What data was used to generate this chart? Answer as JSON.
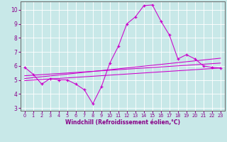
{
  "title": "",
  "xlabel": "Windchill (Refroidissement éolien,°C)",
  "ylabel": "",
  "background_color": "#c8e8e8",
  "grid_color": "#ffffff",
  "line_color": "#cc00cc",
  "xlim": [
    -0.5,
    23.5
  ],
  "ylim": [
    2.8,
    10.6
  ],
  "xticks": [
    0,
    1,
    2,
    3,
    4,
    5,
    6,
    7,
    8,
    9,
    10,
    11,
    12,
    13,
    14,
    15,
    16,
    17,
    18,
    19,
    20,
    21,
    22,
    23
  ],
  "yticks": [
    3,
    4,
    5,
    6,
    7,
    8,
    9,
    10
  ],
  "main_x": [
    0,
    1,
    2,
    3,
    4,
    5,
    6,
    7,
    8,
    9,
    10,
    11,
    12,
    13,
    14,
    15,
    16,
    17,
    18,
    19,
    20,
    21,
    22,
    23
  ],
  "main_y": [
    5.9,
    5.4,
    4.7,
    5.1,
    5.0,
    5.0,
    4.7,
    4.3,
    3.3,
    4.5,
    6.2,
    7.4,
    9.0,
    9.5,
    10.3,
    10.35,
    9.2,
    8.2,
    6.5,
    6.8,
    6.5,
    6.0,
    5.9,
    5.85
  ],
  "line1_x": [
    0,
    23
  ],
  "line1_y": [
    5.3,
    6.2
  ],
  "line2_x": [
    0,
    23
  ],
  "line2_y": [
    5.1,
    6.55
  ],
  "line3_x": [
    0,
    23
  ],
  "line3_y": [
    4.95,
    5.85
  ]
}
